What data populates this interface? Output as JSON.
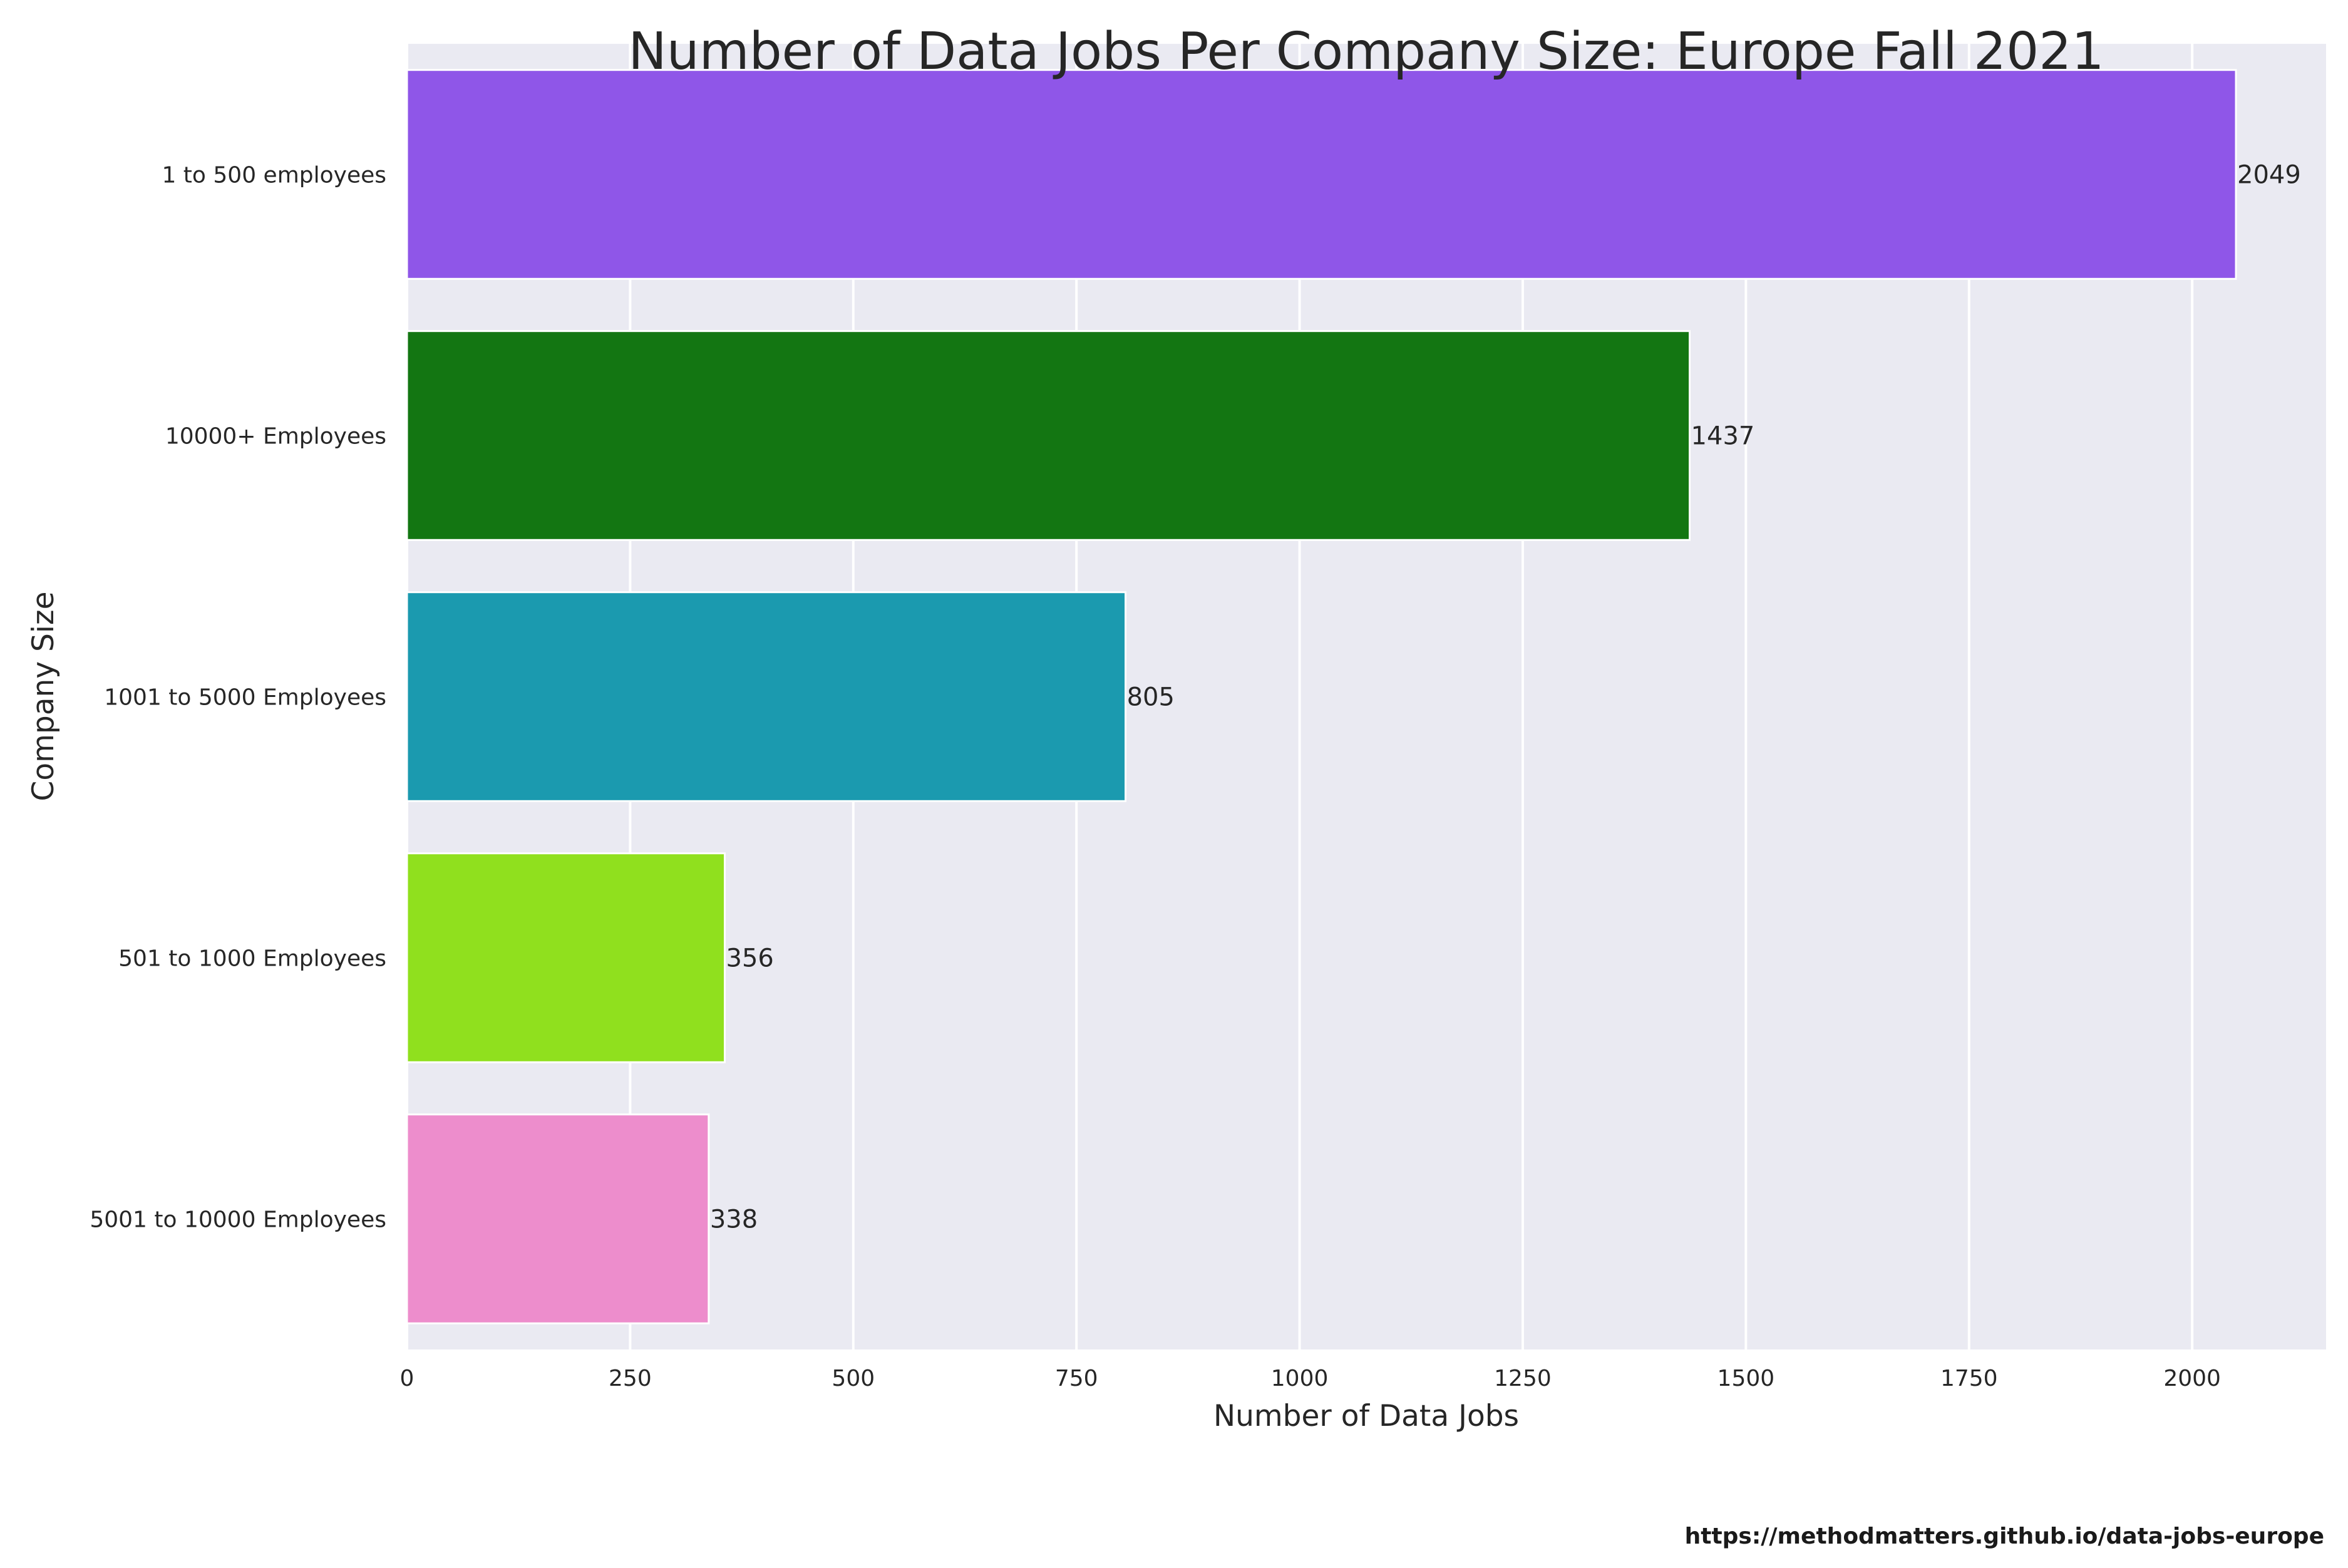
{
  "chart_data": {
    "type": "bar",
    "orientation": "horizontal",
    "title": "Number of Data Jobs Per Company Size: Europe Fall 2021",
    "xlabel": "Number of Data Jobs",
    "ylabel": "Company Size",
    "categories": [
      "1 to 500 employees",
      "10000+ Employees",
      "1001 to 5000 Employees",
      "501 to 1000 Employees",
      "5001 to 10000 Employees"
    ],
    "values": [
      2049,
      1437,
      805,
      356,
      338
    ],
    "data_labels": [
      "2049",
      "1437",
      "805",
      "356",
      "338"
    ],
    "colors": [
      "#8f56e8",
      "#137612",
      "#1b9aaf",
      "#90e01e",
      "#ed8dcc"
    ],
    "xlim": [
      0,
      2150
    ],
    "xticks": [
      0,
      250,
      500,
      750,
      1000,
      1250,
      1500,
      1750,
      2000
    ],
    "grid": true,
    "background_color": "#eaeaf2",
    "grid_color": "#ffffff"
  },
  "footer": {
    "source_url": "https://methodmatters.github.io/data-jobs-europe"
  }
}
